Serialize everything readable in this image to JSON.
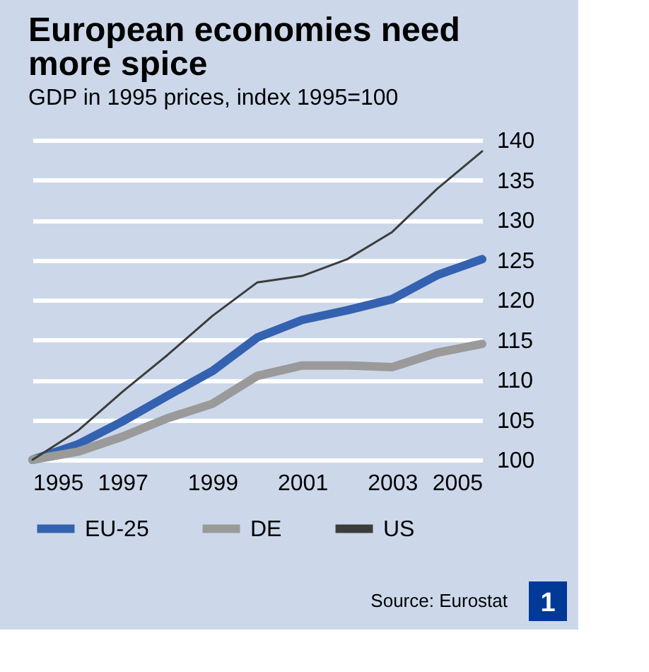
{
  "chart_data": {
    "type": "line",
    "title": "European economies need more spice",
    "subtitle": "GDP in 1995 prices, index 1995=100",
    "x": [
      1995,
      1996,
      1997,
      1998,
      1999,
      2000,
      2001,
      2002,
      2003,
      2004,
      2005
    ],
    "series": [
      {
        "name": "EU-25",
        "color": "#3462b0",
        "values": [
          100,
          101.9,
          104.8,
          108,
          111.1,
          115.3,
          117.5,
          118.7,
          120.1,
          123.1,
          125.1
        ]
      },
      {
        "name": "DE",
        "color": "#9a9a9a",
        "values": [
          100,
          101,
          102.9,
          105.2,
          107,
          110.5,
          111.8,
          111.8,
          111.6,
          113.4,
          114.5
        ]
      },
      {
        "name": "US",
        "color": "#3c3c3c",
        "values": [
          100,
          103.6,
          108.5,
          113.1,
          118,
          122.2,
          123,
          125.1,
          128.5,
          133.9,
          138.6
        ]
      }
    ],
    "xlim": [
      1995,
      2005
    ],
    "xticks": [
      1995,
      1997,
      1999,
      2001,
      2003,
      2005
    ],
    "ylim": [
      100,
      140
    ],
    "yticks": [
      100,
      105,
      110,
      115,
      120,
      125,
      130,
      135,
      140
    ],
    "grid": "y",
    "legend": "bottom",
    "marker": "none",
    "line_style": "solid",
    "annotations": [
      "Source: Eurostat",
      "1"
    ]
  }
}
